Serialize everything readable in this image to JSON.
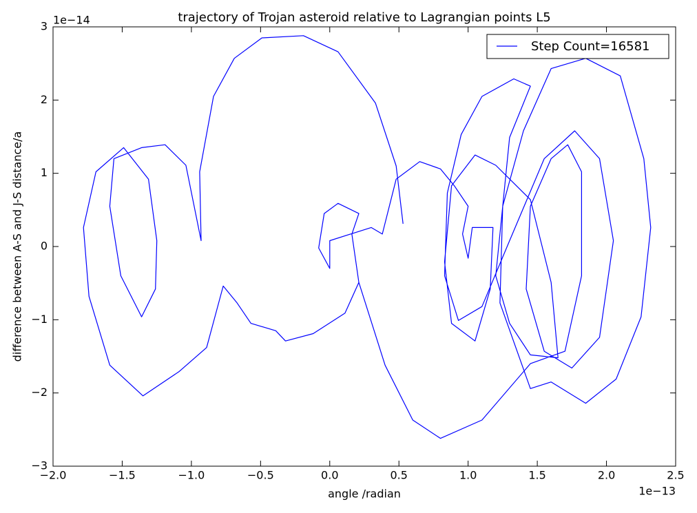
{
  "chart_data": {
    "type": "line",
    "title": "trajectory of Trojan asteroid relative to Lagrangian points L5",
    "xlabel": "angle /radian",
    "ylabel": "difference between A-S and J-S distance/a",
    "x_offset": "1e−13",
    "y_offset": "1e−14",
    "xlim": [
      -2,
      2.5
    ],
    "ylim": [
      -3,
      3
    ],
    "xticks": [
      {
        "value": -2,
        "label": "−2.0"
      },
      {
        "value": -1.5,
        "label": "−1.5"
      },
      {
        "value": -1,
        "label": "−1.0"
      },
      {
        "value": -0.5,
        "label": "−0.5"
      },
      {
        "value": 0,
        "label": "0.0"
      },
      0.5,
      {
        "value": 1,
        "label": "1.0"
      },
      1.5,
      {
        "value": 2,
        "label": "2.0"
      },
      2.5
    ],
    "yticks": [
      {
        "value": -3,
        "label": "−3"
      },
      {
        "value": -2,
        "label": "−2"
      },
      {
        "value": -1,
        "label": "−1"
      },
      0,
      1,
      2,
      3
    ],
    "legend": "upper right",
    "series": [
      {
        "name": "Step Count=16581",
        "color": "#0000ff",
        "x": [
          0.53,
          0.48,
          0.33,
          0.06,
          -0.19,
          -0.49,
          -0.69,
          -0.84,
          -0.94,
          -0.93,
          -1.04,
          -1.19,
          -1.36,
          -1.56,
          -1.59,
          -1.51,
          -1.36,
          -1.26,
          -1.25,
          -1.31,
          -1.49,
          -1.69,
          -1.78,
          -1.74,
          -1.59,
          -1.35,
          -1.09,
          -0.89,
          -0.77,
          -0.67,
          -0.57,
          -0.39,
          -0.32,
          -0.12,
          0.11,
          0.21,
          0.16,
          0.21,
          0.06,
          -0.04,
          -0.08,
          0.0,
          0.0,
          0.3,
          0.38,
          0.48,
          0.65,
          0.8,
          0.9,
          1.0,
          0.96,
          1.0,
          1.03,
          1.18,
          1.16,
          1.05,
          0.88,
          0.83,
          0.88,
          1.05,
          1.2,
          1.45,
          1.6,
          1.65,
          1.45,
          1.3,
          1.2,
          1.25,
          1.4,
          1.6,
          1.85,
          2.1,
          2.27,
          2.32,
          2.25,
          2.07,
          1.85,
          1.6,
          1.45,
          1.23,
          1.25,
          1.3,
          1.45,
          1.33,
          1.1,
          0.95,
          0.85,
          0.83,
          0.93,
          1.1,
          1.3,
          1.55,
          1.77,
          1.95,
          2.05,
          1.95,
          1.75,
          1.55,
          1.42,
          1.45,
          1.6,
          1.72,
          1.82,
          1.82,
          1.7,
          1.45,
          1.1,
          0.8,
          0.6,
          0.4,
          0.21
        ],
        "values": [
          0.31,
          1.1,
          1.96,
          2.66,
          2.88,
          2.85,
          2.57,
          2.05,
          1.02,
          0.08,
          1.11,
          1.39,
          1.35,
          1.2,
          0.55,
          -0.4,
          -0.96,
          -0.58,
          0.08,
          0.92,
          1.35,
          1.02,
          0.26,
          -0.68,
          -1.62,
          -2.04,
          -1.71,
          -1.38,
          -0.54,
          -0.77,
          -1.05,
          -1.15,
          -1.29,
          -1.19,
          -0.91,
          -0.49,
          0.17,
          0.45,
          0.59,
          0.45,
          -0.02,
          -0.3,
          0.08,
          0.26,
          0.17,
          0.92,
          1.16,
          1.06,
          0.83,
          0.55,
          0.17,
          -0.16,
          0.26,
          0.26,
          -0.58,
          -1.29,
          -1.05,
          -0.21,
          0.83,
          1.25,
          1.11,
          0.64,
          -0.49,
          -1.52,
          -1.48,
          -1.05,
          -0.4,
          0.55,
          1.58,
          2.43,
          2.57,
          2.33,
          1.2,
          0.26,
          -0.96,
          -1.81,
          -2.14,
          -1.85,
          -1.94,
          -0.77,
          0.55,
          1.49,
          2.19,
          2.29,
          2.05,
          1.53,
          0.73,
          -0.4,
          -1.01,
          -0.82,
          0.08,
          1.2,
          1.58,
          1.2,
          0.08,
          -1.24,
          -1.66,
          -1.43,
          -0.58,
          0.55,
          1.2,
          1.39,
          1.02,
          -0.4,
          -1.43,
          -1.6,
          -2.37,
          -2.62,
          -2.37,
          -1.62,
          -0.49
        ]
      }
    ]
  }
}
